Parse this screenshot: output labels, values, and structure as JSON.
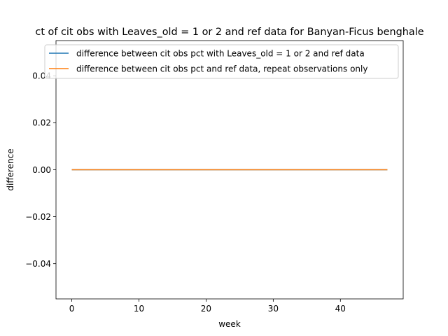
{
  "chart_data": {
    "type": "line",
    "title": "ct of cit obs with Leaves_old = 1 or 2 and ref data for Banyan-Ficus benghale",
    "xlabel": "week",
    "ylabel": "difference",
    "xlim": [
      -2.35,
      49.35
    ],
    "ylim": [
      -0.055,
      0.055
    ],
    "xticks": [
      0,
      10,
      20,
      30,
      40
    ],
    "xtick_labels": [
      "0",
      "10",
      "20",
      "30",
      "40"
    ],
    "yticks": [
      -0.04,
      -0.02,
      0.0,
      0.02,
      0.04
    ],
    "ytick_labels": [
      "−0.04",
      "−0.02",
      "0.00",
      "0.02",
      "0.04"
    ],
    "grid": false,
    "legend_position": "top",
    "series": [
      {
        "name": "difference between cit obs pct with Leaves_old = 1 or 2 and ref data",
        "color": "#1f77b4",
        "x": [
          0,
          47
        ],
        "y": [
          0,
          0
        ]
      },
      {
        "name": "difference between cit obs pct and ref data, repeat observations only",
        "color": "#ff7f0e",
        "x": [
          0,
          47
        ],
        "y": [
          0,
          0
        ]
      }
    ]
  }
}
